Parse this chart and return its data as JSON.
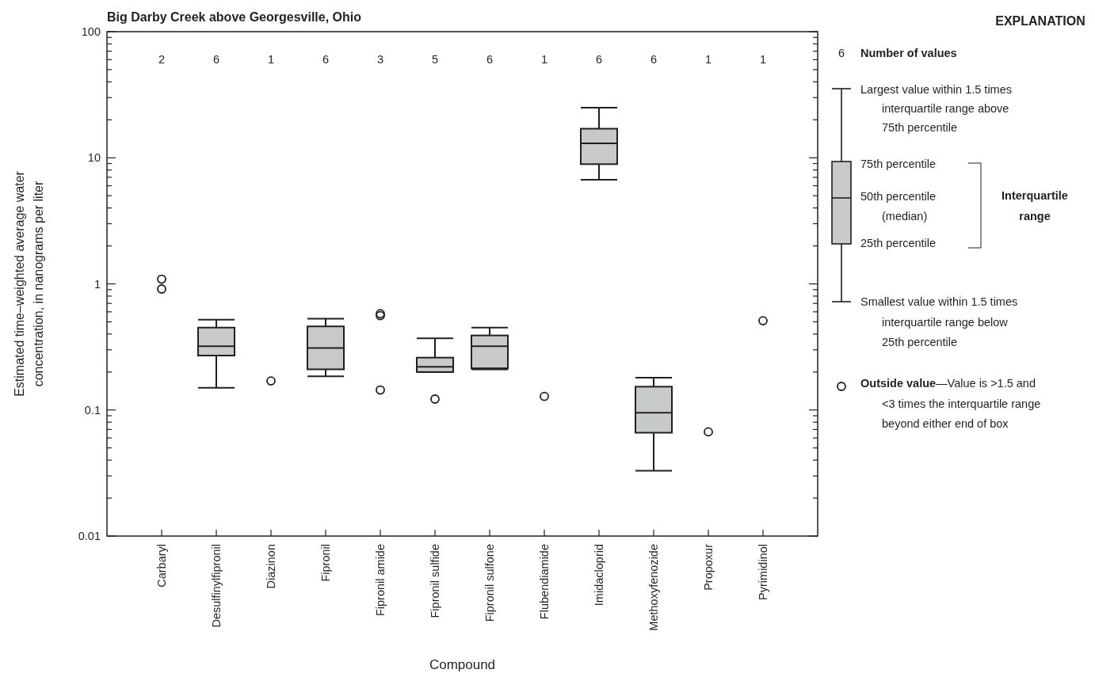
{
  "chart_data": {
    "type": "box",
    "title": "Big Darby Creek above Georgesville, Ohio",
    "xlabel": "Compound",
    "ylabel": "Estimated time–weighted average water concentration, in nanograms per liter",
    "legend_title": "EXPLANATION",
    "log": true,
    "marker": "circle",
    "categories": [
      "Carbaryl",
      "Desulfinylfipronil",
      "Diazinon",
      "Fipronil",
      "Fipronil amide",
      "Fipronil sulfide",
      "Fipronil sulfone",
      "Flubendiamide",
      "Imidacloprid",
      "Methoxyfenozide",
      "Propoxur",
      "Pyrimidinol"
    ],
    "ylim": [
      0.01,
      100
    ],
    "yticks": [
      {
        "value": 0.01,
        "label": "0.01"
      },
      {
        "value": 0.02,
        "label": null
      },
      {
        "value": 0.03,
        "label": null
      },
      {
        "value": 0.04,
        "label": null
      },
      {
        "value": 0.05,
        "label": null
      },
      {
        "value": 0.06,
        "label": null
      },
      {
        "value": 0.07,
        "label": null
      },
      {
        "value": 0.08,
        "label": null
      },
      {
        "value": 0.09,
        "label": null
      },
      {
        "value": 0.1,
        "label": "0.1"
      },
      {
        "value": 0.2,
        "label": null
      },
      {
        "value": 0.3,
        "label": null
      },
      {
        "value": 0.4,
        "label": null
      },
      {
        "value": 0.5,
        "label": null
      },
      {
        "value": 0.6,
        "label": null
      },
      {
        "value": 0.7,
        "label": null
      },
      {
        "value": 0.8,
        "label": null
      },
      {
        "value": 0.9,
        "label": null
      },
      1,
      {
        "value": 2,
        "label": null
      },
      {
        "value": 3,
        "label": null
      },
      {
        "value": 4,
        "label": null
      },
      {
        "value": 5,
        "label": null
      },
      {
        "value": 6,
        "label": null
      },
      {
        "value": 7,
        "label": null
      },
      {
        "value": 8,
        "label": null
      },
      {
        "value": 9,
        "label": null
      },
      10,
      {
        "value": 20,
        "label": null
      },
      {
        "value": 30,
        "label": null
      },
      {
        "value": 40,
        "label": null
      },
      {
        "value": 50,
        "label": null
      },
      {
        "value": 60,
        "label": null
      },
      {
        "value": 70,
        "label": null
      },
      {
        "value": 80,
        "label": null
      },
      {
        "value": 90,
        "label": null
      },
      100
    ],
    "series": [
      {
        "color": "#c8c9cb",
        "boxes": [
          null,
          {
            "low": 0.15,
            "q1": 0.27,
            "median": 0.32,
            "q3": 0.45,
            "high": 0.52
          },
          null,
          {
            "low": 0.185,
            "q1": 0.21,
            "median": 0.31,
            "q3": 0.46,
            "high": 0.53
          },
          null,
          {
            "low": 0.2,
            "q1": 0.2,
            "median": 0.22,
            "q3": 0.26,
            "high": 0.37,
            "outliers": [
              0.122
            ]
          },
          {
            "low": 0.21,
            "q1": 0.214,
            "median": 0.32,
            "q3": 0.39,
            "high": 0.45
          },
          null,
          {
            "low": 6.7,
            "q1": 8.9,
            "median": 13,
            "q3": 17,
            "high": 25
          },
          {
            "low": 0.033,
            "q1": 0.066,
            "median": 0.095,
            "q3": 0.153,
            "high": 0.18
          },
          null,
          null
        ]
      },
      {
        "type": "scatter",
        "color": "#231f20",
        "x": [
          "Carbaryl",
          "Carbaryl",
          "Diazinon",
          "Fipronil amide",
          "Fipronil amide",
          "Fipronil amide",
          "Flubendiamide",
          "Propoxur",
          "Pyrimidinol"
        ],
        "values": [
          1.09,
          0.91,
          0.17,
          0.58,
          0.56,
          0.144,
          0.128,
          0.067,
          0.51
        ]
      }
    ],
    "annotations": [
      "2",
      "6",
      "1",
      "6",
      "3",
      "5",
      "6",
      "1",
      "6",
      "6",
      "1",
      "1",
      "6",
      "Number of values",
      "Largest value within 1.5 times",
      "interquartile range above",
      "75th percentile",
      "75th percentile",
      "50th percentile",
      "(median)",
      "25th percentile",
      "Interquartile",
      "range",
      "Smallest value within 1.5 times",
      "interquartile range below",
      "25th percentile",
      "Outside value",
      "—Value is >1.5 and",
      "<3 times the interquartile range",
      "beyond either end of box"
    ]
  }
}
